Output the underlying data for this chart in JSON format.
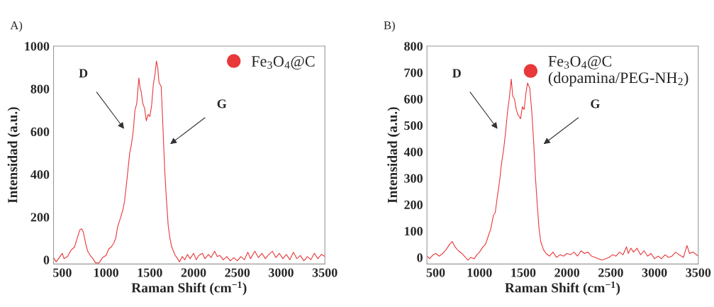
{
  "chart_data": [
    {
      "type": "line",
      "title": "A)",
      "xlabel": "Raman Shift (cm$^{−1}$)",
      "ylabel": "Intensidad (a.u.)",
      "xlim": [
        400,
        3500
      ],
      "ylim": [
        -20,
        1000
      ],
      "xticks": [
        500,
        1000,
        1500,
        2000,
        2500,
        3000,
        3500
      ],
      "yticks": [
        0,
        200,
        400,
        600,
        800,
        1000
      ],
      "grid": false,
      "legend": "top right",
      "annotations": [
        "D",
        "G"
      ],
      "series": [
        {
          "name": "Fe$_{3}$O$_{4}$@C",
          "color": "#e8383b",
          "x": [
            400,
            430,
            500,
            520,
            560,
            600,
            640,
            670,
            700,
            720,
            740,
            770,
            790,
            820,
            850,
            880,
            920,
            960,
            1000,
            1030,
            1060,
            1090,
            1110,
            1130,
            1160,
            1190,
            1210,
            1240,
            1270,
            1290,
            1310,
            1330,
            1350,
            1375,
            1390,
            1400,
            1420,
            1440,
            1460,
            1480,
            1500,
            1520,
            1540,
            1560,
            1575,
            1590,
            1605,
            1630,
            1650,
            1670,
            1690,
            1710,
            1730,
            1750,
            1770,
            1790,
            1810,
            1840,
            1870,
            1900,
            1930,
            1960,
            2000,
            2030,
            2060,
            2100,
            2130,
            2170,
            2200,
            2240,
            2270,
            2300,
            2340,
            2380,
            2420,
            2460,
            2500,
            2540,
            2580,
            2620,
            2650,
            2700,
            2740,
            2780,
            2820,
            2860,
            2900,
            2940,
            2980,
            3020,
            3060,
            3100,
            3140,
            3180,
            3220,
            3260,
            3300,
            3340,
            3380,
            3420,
            3460,
            3500
          ],
          "values": [
            10,
            -10,
            30,
            5,
            15,
            45,
            60,
            100,
            140,
            145,
            130,
            70,
            40,
            20,
            5,
            -15,
            -15,
            10,
            20,
            50,
            60,
            80,
            100,
            150,
            190,
            230,
            270,
            380,
            500,
            540,
            600,
            700,
            730,
            850,
            800,
            790,
            730,
            710,
            650,
            680,
            670,
            720,
            820,
            870,
            930,
            900,
            830,
            810,
            620,
            420,
            280,
            160,
            100,
            60,
            40,
            20,
            10,
            -10,
            15,
            0,
            25,
            5,
            30,
            0,
            20,
            30,
            5,
            25,
            10,
            40,
            15,
            20,
            0,
            15,
            -5,
            10,
            -5,
            15,
            0,
            35,
            5,
            40,
            10,
            30,
            5,
            25,
            40,
            10,
            30,
            5,
            25,
            0,
            35,
            5,
            20,
            -5,
            15,
            0,
            30,
            5,
            25,
            15
          ]
        }
      ]
    },
    {
      "type": "line",
      "title": "B)",
      "xlabel": "Raman Shift (cm$^{−1}$)",
      "ylabel": "Intensidad (a.u.)",
      "xlim": [
        400,
        3500
      ],
      "ylim": [
        -25,
        800
      ],
      "xticks": [
        500,
        1000,
        1500,
        2000,
        2500,
        3000,
        3500
      ],
      "yticks": [
        0,
        100,
        200,
        300,
        400,
        500,
        600,
        700,
        800
      ],
      "grid": false,
      "legend": "top right",
      "annotations": [
        "D",
        "G"
      ],
      "series": [
        {
          "name": "Fe$_{3}$O$_{4}$@C\n(dopamina/PEG-NH$_{2}$)",
          "color": "#e8383b",
          "x": [
            400,
            430,
            470,
            500,
            540,
            580,
            620,
            660,
            690,
            720,
            760,
            800,
            840,
            870,
            900,
            940,
            970,
            1000,
            1040,
            1070,
            1100,
            1130,
            1160,
            1180,
            1200,
            1230,
            1250,
            1280,
            1300,
            1320,
            1340,
            1363,
            1380,
            1400,
            1420,
            1440,
            1469,
            1490,
            1510,
            1530,
            1549,
            1575,
            1600,
            1620,
            1640,
            1660,
            1680,
            1700,
            1730,
            1760,
            1800,
            1840,
            1880,
            1920,
            1960,
            2000,
            2040,
            2080,
            2120,
            2160,
            2200,
            2240,
            2280,
            2320,
            2360,
            2400,
            2440,
            2480,
            2520,
            2560,
            2600,
            2640,
            2680,
            2700,
            2730,
            2760,
            2800,
            2840,
            2880,
            2920,
            2960,
            3000,
            3040,
            3080,
            3120,
            3160,
            3200,
            3240,
            3280,
            3330,
            3370,
            3400,
            3440,
            3500
          ],
          "values": [
            5,
            -5,
            10,
            15,
            5,
            15,
            30,
            50,
            60,
            40,
            25,
            15,
            0,
            -10,
            0,
            -5,
            10,
            20,
            40,
            50,
            80,
            110,
            160,
            170,
            220,
            290,
            350,
            420,
            480,
            550,
            600,
            675,
            610,
            600,
            560,
            540,
            525,
            570,
            560,
            620,
            660,
            640,
            540,
            430,
            300,
            200,
            110,
            60,
            30,
            15,
            5,
            20,
            0,
            10,
            5,
            15,
            10,
            20,
            5,
            25,
            15,
            20,
            5,
            0,
            -5,
            -10,
            -5,
            0,
            10,
            5,
            20,
            10,
            40,
            15,
            35,
            20,
            35,
            10,
            25,
            5,
            15,
            -5,
            5,
            -5,
            10,
            0,
            5,
            20,
            10,
            0,
            45,
            15,
            20,
            5
          ]
        }
      ]
    }
  ]
}
